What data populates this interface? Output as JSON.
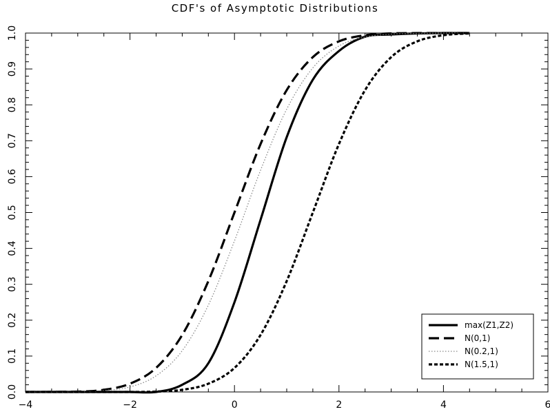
{
  "chart_data": {
    "type": "line",
    "title": "CDF's of Asymptotic Distributions",
    "xlabel": "",
    "ylabel": "",
    "xlim": [
      -4,
      6
    ],
    "ylim": [
      0.0,
      1.0
    ],
    "xticks": [
      -4,
      -2,
      0,
      2,
      4,
      6
    ],
    "xtick_labels": [
      "−4",
      "−2",
      "0",
      "2",
      "4",
      "6"
    ],
    "yticks": [
      0.0,
      0.1,
      0.2,
      0.3,
      0.4,
      0.5,
      0.6,
      0.7,
      0.8,
      0.9,
      1.0
    ],
    "ytick_labels": [
      "0.0",
      "0.1",
      "0.2",
      "0.3",
      "0.4",
      "0.5",
      "0.6",
      "0.7",
      "0.8",
      "0.9",
      "1.0"
    ],
    "grid": false,
    "legend_position": "bottom-right",
    "x": [
      -4.0,
      -3.0,
      -2.5,
      -2.0,
      -1.5,
      -1.0,
      -0.5,
      0.0,
      0.5,
      1.0,
      1.5,
      2.0,
      2.5,
      3.0,
      3.5,
      4.0,
      4.5
    ],
    "series": [
      {
        "name": "max(Z1,Z2)",
        "style": "solid",
        "values": [
          0.0,
          0.0,
          0.0,
          0.0,
          0.0,
          0.02,
          0.08,
          0.25,
          0.48,
          0.71,
          0.87,
          0.95,
          0.99,
          0.996,
          0.999,
          1.0,
          1.0
        ]
      },
      {
        "name": "N(0,1)",
        "style": "long-dash",
        "values": [
          0.0,
          0.001,
          0.006,
          0.023,
          0.067,
          0.159,
          0.309,
          0.5,
          0.691,
          0.841,
          0.933,
          0.977,
          0.994,
          0.999,
          1.0,
          1.0,
          1.0
        ]
      },
      {
        "name": "N(0.2,1)",
        "style": "dotted",
        "values": [
          0.0,
          0.0,
          0.004,
          0.014,
          0.045,
          0.115,
          0.242,
          0.421,
          0.618,
          0.788,
          0.903,
          0.964,
          0.989,
          0.997,
          0.999,
          1.0,
          1.0
        ]
      },
      {
        "name": "N(1.5,1)",
        "style": "short-dash",
        "values": [
          0.0,
          0.0,
          0.0,
          0.0,
          0.001,
          0.006,
          0.023,
          0.067,
          0.159,
          0.309,
          0.5,
          0.691,
          0.841,
          0.933,
          0.977,
          0.994,
          0.999
        ]
      }
    ]
  }
}
